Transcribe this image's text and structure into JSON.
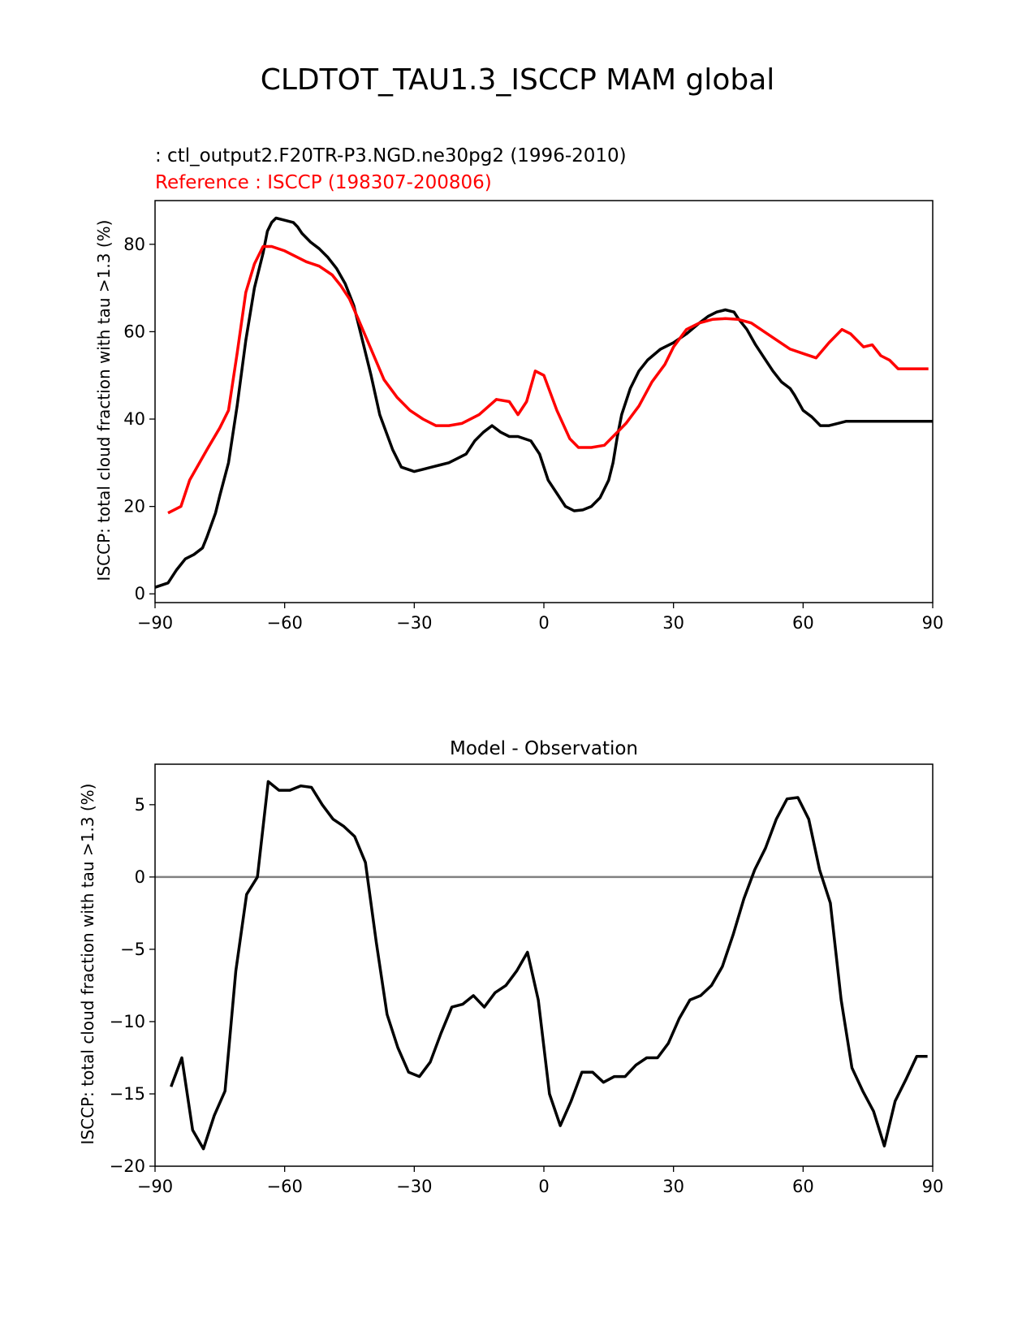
{
  "figure_title": "CLDTOT_TAU1.3_ISCCP MAM global",
  "chart_data": [
    {
      "type": "line",
      "title_test": " : ctl_output2.F20TR-P3.NGD.ne30pg2 (1996-2010)",
      "title_ref": "Reference : ISCCP (198307-200806)",
      "ylabel": "ISCCP: total cloud fraction with tau >1.3 (%)",
      "xlabel": "",
      "xlim": [
        -90,
        90
      ],
      "ylim": [
        -2,
        90
      ],
      "xticks": [
        -90,
        -60,
        -30,
        0,
        30,
        60,
        90
      ],
      "xtick_labels": [
        "−90",
        "−60",
        "−30",
        "0",
        "30",
        "60",
        "90"
      ],
      "yticks": [
        0,
        20,
        40,
        60,
        80
      ],
      "ytick_labels": [
        "0",
        "20",
        "40",
        "60",
        "80"
      ],
      "series": [
        {
          "name": "test",
          "color": "#000000",
          "x": [
            -90,
            -87,
            -85,
            -83,
            -81,
            -79,
            -78,
            -76,
            -75,
            -73,
            -71,
            -69,
            -67,
            -65,
            -64,
            -63,
            -62,
            -60,
            -58,
            -57,
            -56,
            -54,
            -52,
            -50,
            -48,
            -46,
            -44,
            -42,
            -40,
            -38,
            -35,
            -33,
            -30,
            -28,
            -26,
            -24,
            -22,
            -20,
            -18,
            -16,
            -14,
            -12,
            -10,
            -8,
            -6,
            -3,
            -1,
            1,
            3,
            4,
            5,
            7,
            9,
            11,
            13,
            15,
            16,
            17,
            18,
            20,
            22,
            24,
            27,
            30,
            33,
            36,
            38,
            40,
            42,
            44,
            45,
            47,
            49,
            51,
            53,
            55,
            57,
            58,
            60,
            62,
            64,
            66,
            68,
            70,
            72,
            74,
            76,
            78,
            80,
            82,
            84,
            86,
            88,
            90
          ],
          "values": [
            1.5,
            2.5,
            5.5,
            8,
            9,
            10.5,
            13,
            18.5,
            22.5,
            30,
            43,
            58,
            70,
            78,
            83,
            85,
            86,
            85.5,
            85,
            84,
            82.5,
            80.5,
            79,
            77,
            74.5,
            71,
            66,
            58,
            50,
            41,
            33,
            29,
            28,
            28.5,
            29,
            29.5,
            30,
            31,
            32,
            35,
            37,
            38.5,
            37,
            36,
            36,
            35,
            32,
            26,
            23,
            21.5,
            20,
            19,
            19.2,
            20,
            22,
            26,
            30,
            36,
            41,
            47,
            51,
            53.5,
            56,
            57.5,
            59.5,
            62,
            63.5,
            64.5,
            65,
            64.5,
            63,
            60.5,
            57,
            54,
            51,
            48.5,
            47,
            45.5,
            42,
            40.5,
            38.5,
            38.5,
            39,
            39.5,
            39.5,
            39.5,
            39.5,
            39.5,
            39.5,
            39.5,
            39.5,
            39.5,
            39.5,
            39.5
          ]
        },
        {
          "name": "reference",
          "color": "#ff0000",
          "x": [
            -87,
            -84,
            -82,
            -78,
            -75,
            -73,
            -71,
            -69,
            -67,
            -65,
            -63,
            -60,
            -57,
            -55,
            -52,
            -49,
            -47,
            -45,
            -43,
            -40,
            -37,
            -34,
            -31,
            -28,
            -25,
            -22,
            -19,
            -15,
            -11,
            -8,
            -6,
            -4,
            -2,
            0,
            3,
            6,
            8,
            11,
            14,
            16,
            19,
            22,
            25,
            28,
            30,
            33,
            36,
            39,
            42,
            45,
            48,
            51,
            54,
            57,
            60,
            63,
            66,
            69,
            71,
            74,
            76,
            78,
            80,
            82,
            84,
            86,
            89
          ],
          "values": [
            18.5,
            20,
            26,
            33,
            38,
            42,
            55,
            69,
            75.5,
            79.5,
            79.5,
            78.5,
            77,
            76,
            75,
            73,
            70.5,
            67.5,
            63,
            56,
            49,
            45,
            42,
            40,
            38.5,
            38.5,
            39,
            41,
            44.5,
            44,
            41,
            44,
            51,
            50,
            42,
            35.5,
            33.5,
            33.5,
            34,
            36,
            39,
            43,
            48.5,
            52.5,
            56.5,
            60.5,
            62,
            62.8,
            63,
            62.8,
            62,
            60,
            58,
            56,
            55,
            54,
            57.5,
            60.5,
            59.5,
            56.5,
            57,
            54.5,
            53.5,
            51.5,
            51.5,
            51.5,
            51.5
          ]
        }
      ]
    },
    {
      "type": "line",
      "title": "Model - Observation",
      "ylabel": "ISCCP: total cloud fraction with tau >1.3 (%)",
      "xlabel": "",
      "xlim": [
        -90,
        90
      ],
      "ylim": [
        -20,
        7.8
      ],
      "xticks": [
        -90,
        -60,
        -30,
        0,
        30,
        60,
        90
      ],
      "xtick_labels": [
        "−90",
        "−60",
        "−30",
        "0",
        "30",
        "60",
        "90"
      ],
      "yticks": [
        -20,
        -15,
        -10,
        -5,
        0,
        5
      ],
      "ytick_labels": [
        "−20",
        "−15",
        "−10",
        "−5",
        "0",
        "5"
      ],
      "zero_line": true,
      "series": [
        {
          "name": "difference",
          "color": "#000000",
          "x": [
            -86.3,
            -83.8,
            -81.3,
            -78.8,
            -76.3,
            -73.8,
            -71.3,
            -68.8,
            -66.3,
            -63.8,
            -61.3,
            -58.8,
            -56.3,
            -53.8,
            -51.3,
            -48.8,
            -46.3,
            -43.8,
            -41.3,
            -38.8,
            -36.3,
            -33.8,
            -31.3,
            -28.8,
            -26.3,
            -23.8,
            -21.3,
            -18.8,
            -16.3,
            -13.8,
            -11.3,
            -8.8,
            -6.3,
            -3.8,
            -1.3,
            1.3,
            3.8,
            6.3,
            8.8,
            11.3,
            13.8,
            16.3,
            18.8,
            21.3,
            23.8,
            26.3,
            28.8,
            31.3,
            33.8,
            36.3,
            38.8,
            41.3,
            43.8,
            46.3,
            48.8,
            51.3,
            53.8,
            56.3,
            58.8,
            61.3,
            63.8,
            66.3,
            68.8,
            71.3,
            73.8,
            76.3,
            78.8,
            81.3,
            83.8,
            86.3,
            88.8
          ],
          "values": [
            -14.5,
            -12.5,
            -17.5,
            -18.8,
            -16.5,
            -14.8,
            -6.5,
            -1.2,
            0,
            6.6,
            6,
            6,
            6.3,
            6.2,
            5,
            4,
            3.5,
            2.8,
            1,
            -4.5,
            -9.5,
            -11.8,
            -13.5,
            -13.8,
            -12.8,
            -10.8,
            -9,
            -8.8,
            -8.2,
            -9,
            -8,
            -7.5,
            -6.5,
            -5.2,
            -8.5,
            -15,
            -17.2,
            -15.5,
            -13.5,
            -13.5,
            -14.2,
            -13.8,
            -13.8,
            -13,
            -12.5,
            -12.5,
            -11.5,
            -9.8,
            -8.5,
            -8.2,
            -7.5,
            -6.2,
            -4,
            -1.5,
            0.5,
            2,
            4,
            5.4,
            5.5,
            4,
            0.5,
            -1.8,
            -8.5,
            -13.2,
            -14.8,
            -16.2,
            -18.6,
            -15.5,
            -14,
            -12.4,
            -12.4
          ]
        }
      ]
    }
  ]
}
